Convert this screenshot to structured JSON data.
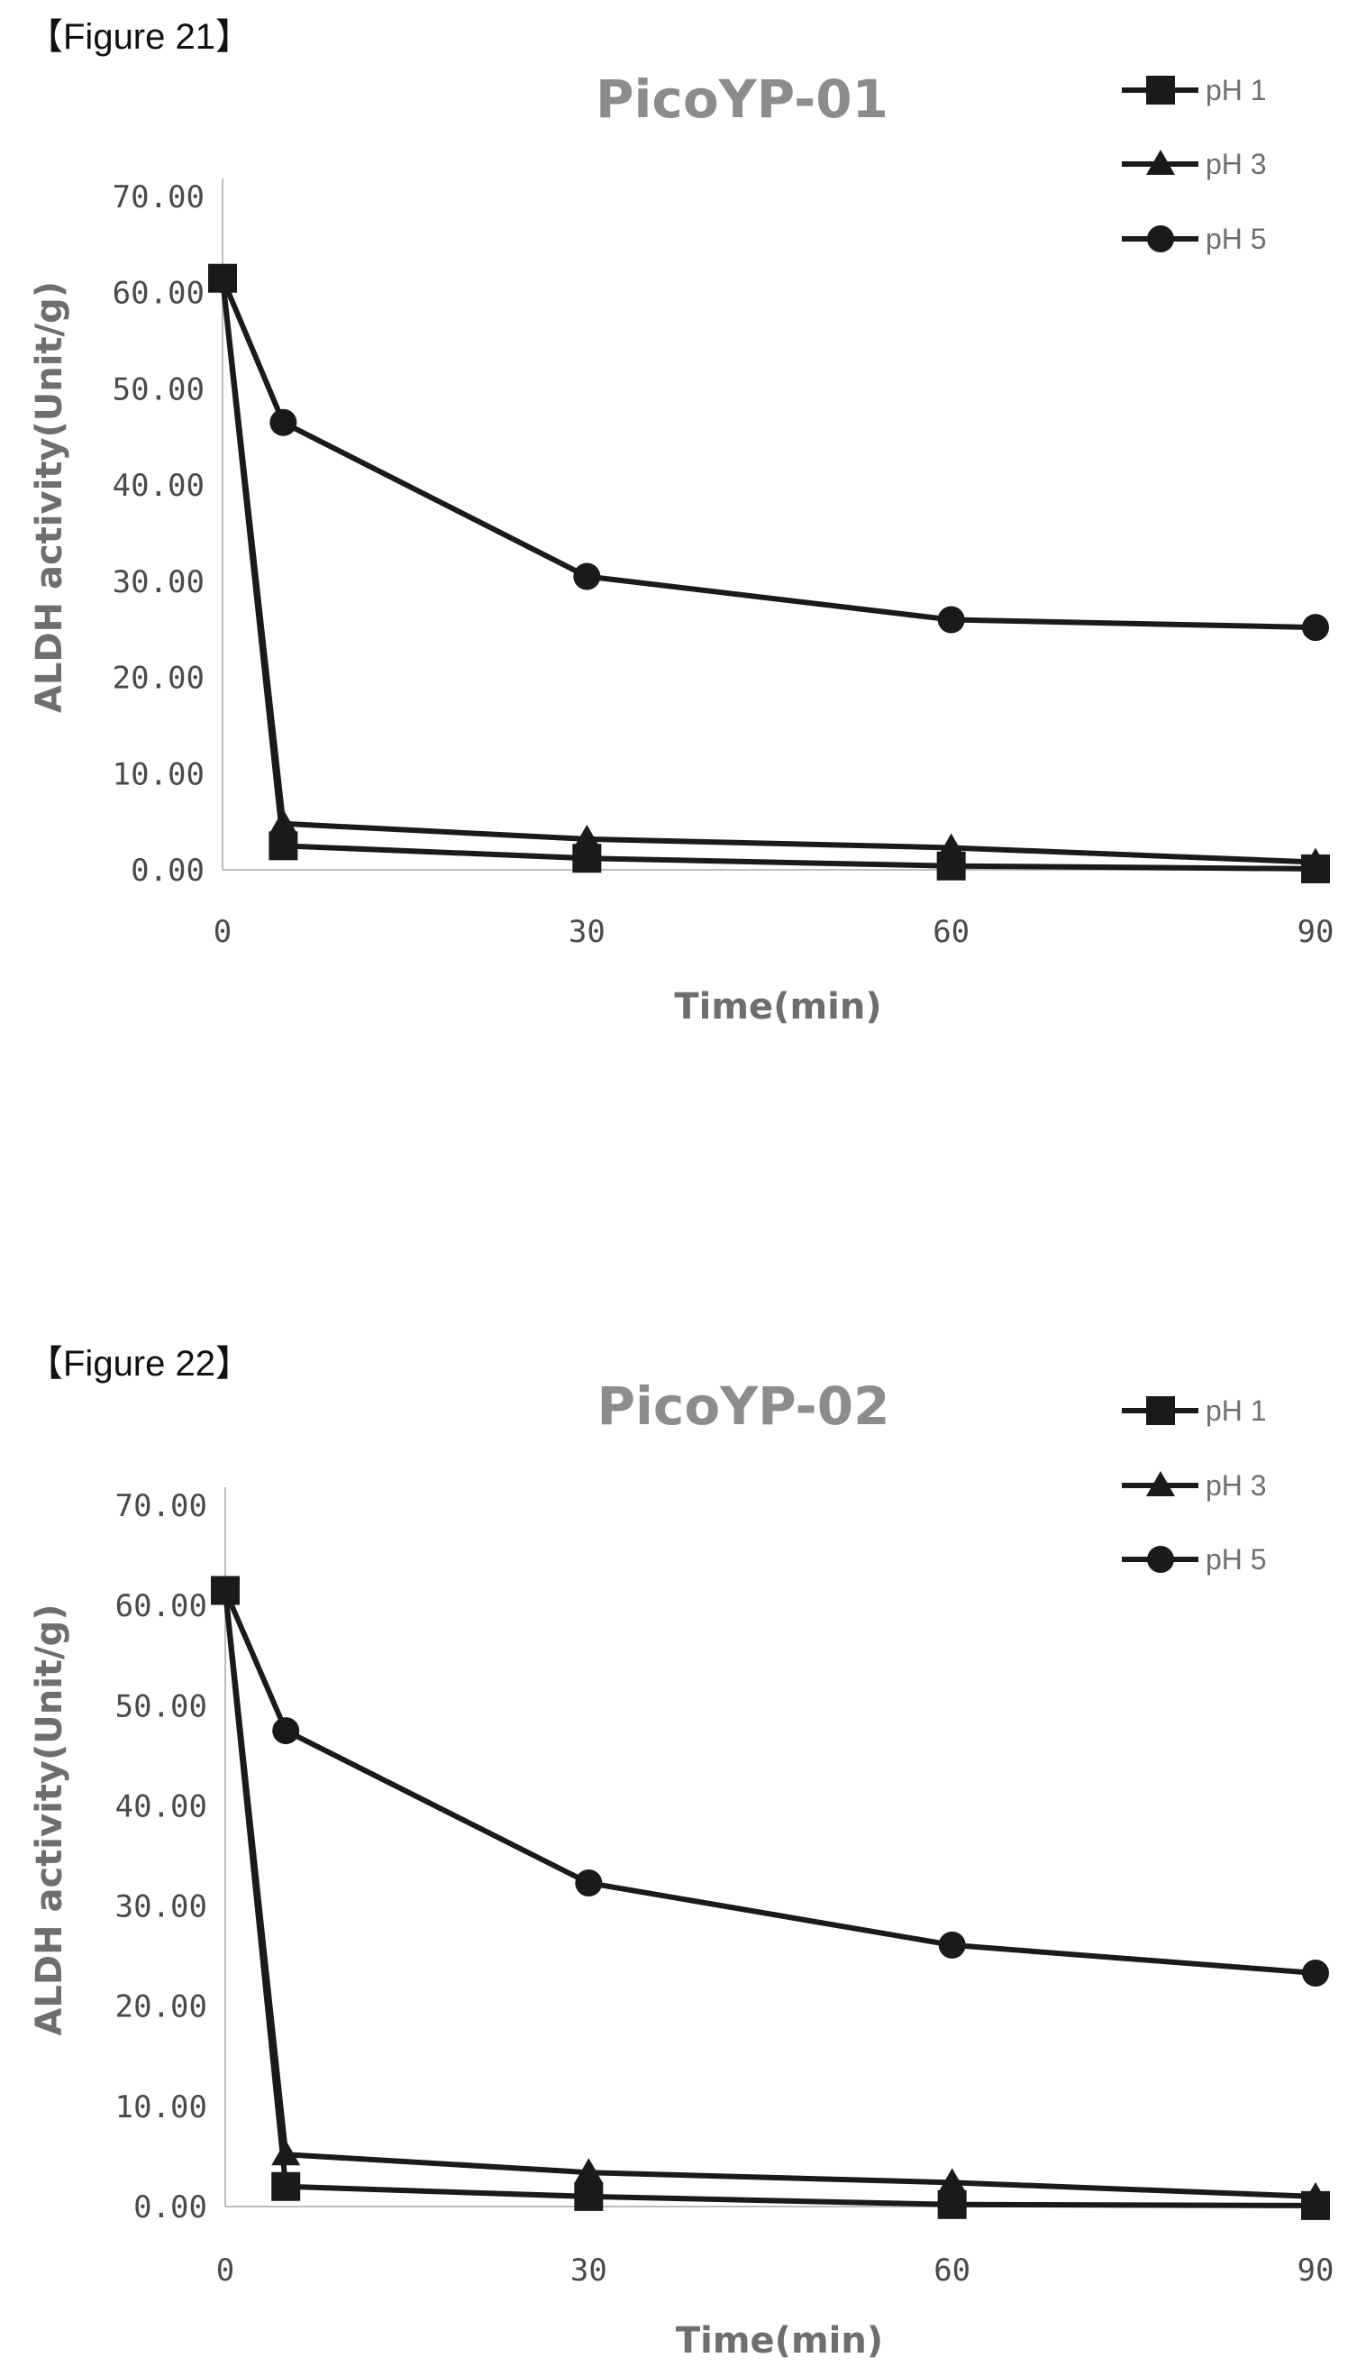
{
  "figures": [
    {
      "label": "【Figure 21】"
    },
    {
      "label": "【Figure 22】"
    }
  ],
  "chart_data": [
    {
      "type": "line",
      "title": "PicoYP-01",
      "xlabel": "Time(min)",
      "ylabel": "ALDH activity(Unit/g)",
      "x": [
        0,
        5,
        30,
        60,
        90
      ],
      "xlim": [
        0,
        90
      ],
      "ylim": [
        0,
        70
      ],
      "xticks": [
        "0",
        "30",
        "60",
        "90"
      ],
      "xtick_values": [
        0,
        30,
        60,
        90
      ],
      "yticks": [
        "0.00",
        "10.00",
        "20.00",
        "30.00",
        "40.00",
        "50.00",
        "60.00",
        "70.00"
      ],
      "ytick_values": [
        0,
        10,
        20,
        30,
        40,
        50,
        60,
        70
      ],
      "grid": false,
      "legend": "top-right",
      "series": [
        {
          "name": "pH 1",
          "marker": "square",
          "values": [
            61.5,
            2.5,
            1.2,
            0.4,
            0.1
          ]
        },
        {
          "name": "pH 3",
          "marker": "triangle",
          "values": [
            61.5,
            4.8,
            3.2,
            2.3,
            0.8
          ]
        },
        {
          "name": "pH 5",
          "marker": "circle",
          "values": [
            61.5,
            46.5,
            30.5,
            26.0,
            25.2
          ]
        }
      ]
    },
    {
      "type": "line",
      "title": "PicoYP-02",
      "xlabel": "Time(min)",
      "ylabel": "ALDH activity(Unit/g)",
      "x": [
        0,
        5,
        30,
        60,
        90
      ],
      "xlim": [
        0,
        90
      ],
      "ylim": [
        0,
        70
      ],
      "xticks": [
        "0",
        "30",
        "60",
        "90"
      ],
      "xtick_values": [
        0,
        30,
        60,
        90
      ],
      "yticks": [
        "0.00",
        "10.00",
        "20.00",
        "30.00",
        "40.00",
        "50.00",
        "60.00",
        "70.00"
      ],
      "ytick_values": [
        0,
        10,
        20,
        30,
        40,
        50,
        60,
        70
      ],
      "grid": false,
      "legend": "top-right",
      "series": [
        {
          "name": "pH 1",
          "marker": "square",
          "values": [
            61.5,
            2.0,
            1.0,
            0.2,
            0.1
          ]
        },
        {
          "name": "pH 3",
          "marker": "triangle",
          "values": [
            61.5,
            5.2,
            3.4,
            2.4,
            1.0
          ]
        },
        {
          "name": "pH 5",
          "marker": "circle",
          "values": [
            61.5,
            47.5,
            32.3,
            26.1,
            23.3
          ]
        }
      ]
    }
  ]
}
